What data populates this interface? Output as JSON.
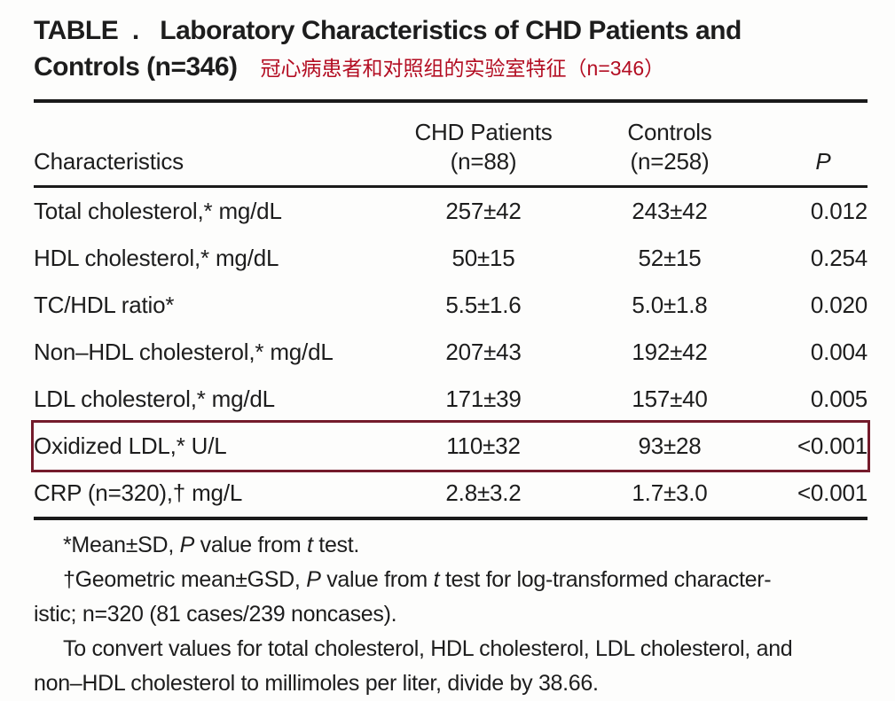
{
  "title": {
    "line1": "TABLE  .   Laboratory Characteristics of CHD Patients and",
    "line2": "Controls (n=346)",
    "annotation_zh": "冠心病患者和对照组的实验室特征（n=346）"
  },
  "table": {
    "header": {
      "characteristics": "Characteristics",
      "chd_line1": "CHD Patients",
      "chd_line2": "(n=88)",
      "controls_line1": "Controls",
      "controls_line2": "(n=258)",
      "p": "P"
    },
    "rows": [
      {
        "label": "Total cholesterol,* mg/dL",
        "chd": "257±42",
        "controls": "243±42",
        "p": "0.012",
        "highlighted": false
      },
      {
        "label": "HDL cholesterol,* mg/dL",
        "chd": "50±15",
        "controls": "52±15",
        "p": "0.254",
        "highlighted": false
      },
      {
        "label": "TC/HDL ratio*",
        "chd": "5.5±1.6",
        "controls": "5.0±1.8",
        "p": "0.020",
        "highlighted": false
      },
      {
        "label": "Non–HDL cholesterol,* mg/dL",
        "chd": "207±43",
        "controls": "192±42",
        "p": "0.004",
        "highlighted": false
      },
      {
        "label": "LDL cholesterol,* mg/dL",
        "chd": "171±39",
        "controls": "157±40",
        "p": "0.005",
        "highlighted": false
      },
      {
        "label": "Oxidized LDL,* U/L",
        "chd": "110±32",
        "controls": "93±28",
        "p": "<0.001",
        "highlighted": true
      },
      {
        "label": "CRP (n=320),† mg/L",
        "chd": "2.8±3.2",
        "controls": "1.7±3.0",
        "p": "<0.001",
        "highlighted": false
      }
    ]
  },
  "footnotes": [
    {
      "segments": [
        "*Mean±SD, ",
        "P",
        " value from ",
        "t",
        " test."
      ]
    },
    {
      "segments": [
        "†Geometric mean±GSD, ",
        "P",
        " value from ",
        "t",
        " test for log-transformed character-"
      ],
      "line2": "istic; n=320 (81 cases/239 noncases)."
    },
    {
      "line1": "To convert values for total cholesterol, HDL cholesterol, LDL cholesterol, and",
      "line2": "non–HDL cholesterol to millimoles per liter, divide by 38.66."
    }
  ],
  "colors": {
    "highlight_border": "#741b2b",
    "annotation_red": "#b30d22",
    "text": "#1d1d1d",
    "rule": "#1a1a1a"
  }
}
